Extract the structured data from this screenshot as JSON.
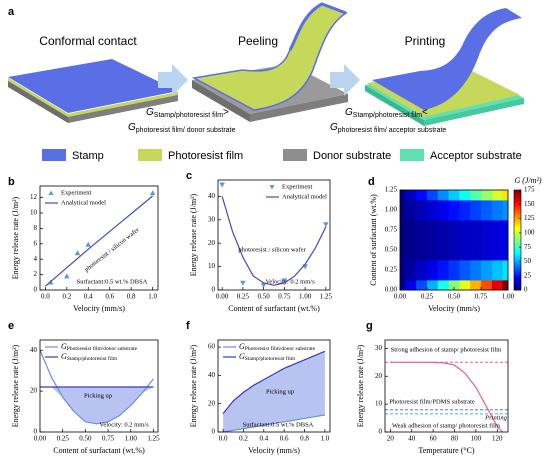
{
  "panel_a": {
    "label": "a",
    "steps": [
      "Conformal contact",
      "Peeling",
      "Printing"
    ],
    "conditions": [
      {
        "top": {
          "symbol": "G",
          "sub": "Stamp/photoresist film",
          "relation": ">"
        },
        "bottom": {
          "symbol": "G",
          "sub": "photoresist film/ donor substrate"
        }
      },
      {
        "top": {
          "symbol": "G",
          "sub": "Stamp/photoresist film",
          "relation": "<"
        },
        "bottom": {
          "symbol": "G",
          "sub": "photoresist film/ acceptor substrate"
        }
      }
    ],
    "legend": [
      {
        "name": "Stamp",
        "color": "#5a6ee6"
      },
      {
        "name": "Photoresist film",
        "color": "#c5d85a"
      },
      {
        "name": "Donor substrate",
        "color": "#8e8e8e"
      },
      {
        "name": "Acceptor substrate",
        "color": "#5ee0b0"
      }
    ]
  },
  "chart_data": [
    {
      "label": "b",
      "type": "scatter",
      "xlabel": "Velocity (mm/s)",
      "ylabel": "Energy release rate (J/m²)",
      "xlim": [
        -0.05,
        1.05
      ],
      "ylim": [
        0,
        13.5
      ],
      "xticks": [
        {
          "value": 0,
          "label": "0.0"
        },
        0.2,
        0.4,
        0.6,
        0.8,
        {
          "value": 1,
          "label": "1.0"
        }
      ],
      "yticks": [
        0,
        2,
        4,
        6,
        8,
        10,
        12
      ],
      "legend": "upper left",
      "series": [
        {
          "name": "Experiment",
          "color": "#5b9bd5",
          "marker": "triangle",
          "x": [
            0.05,
            0.2,
            0.3,
            0.4,
            1.0
          ],
          "values": [
            1.0,
            1.8,
            4.8,
            5.9,
            12.6
          ]
        },
        {
          "name": "Analytical model",
          "color": "#4848c0",
          "x": [
            0,
            0.2,
            0.4,
            0.6,
            0.8,
            1.0
          ],
          "values": [
            0.5,
            2.9,
            5.3,
            7.6,
            9.9,
            12.2
          ]
        }
      ],
      "annotations": [
        {
          "text": "photoresist / silicon wafer"
        },
        {
          "text": "Surfactant:0.5 wt.% DBSA"
        }
      ]
    },
    {
      "label": "c",
      "type": "scatter",
      "xlabel": "Content of surfactant (wt.%)",
      "ylabel": "Energy release rate (J/m²)",
      "xlim": [
        -0.05,
        1.3
      ],
      "ylim": [
        0,
        47
      ],
      "xticks": [
        {
          "value": 0,
          "label": "0.00"
        },
        0.25,
        {
          "value": 0.5,
          "label": "0.50"
        },
        0.75,
        {
          "value": 1,
          "label": "1.00"
        },
        1.25
      ],
      "yticks": [
        0,
        10,
        20,
        30,
        40
      ],
      "legend": "upper right",
      "series": [
        {
          "name": "Experiment",
          "color": "#5b9bd5",
          "marker": "triangle-down",
          "x": [
            0,
            0.25,
            0.5,
            0.75,
            1.0,
            1.25
          ],
          "values": [
            45,
            3,
            2,
            4,
            10,
            28
          ]
        },
        {
          "name": "Analytical model",
          "color": "#4848c0",
          "x": [
            0,
            0.125,
            0.25,
            0.375,
            0.5,
            0.625,
            0.75,
            0.875,
            1.0,
            1.125,
            1.25
          ],
          "values": [
            40,
            25,
            14,
            6,
            3,
            2,
            3,
            6,
            11,
            18,
            27
          ]
        }
      ],
      "annotations": [
        {
          "text": "photoresist / silicon wafer"
        },
        {
          "text": "Velocity: 0.2 mm/s"
        }
      ]
    },
    {
      "label": "d",
      "type": "heatmap",
      "xlabel": "Velocity (mm/s)",
      "ylabel": "Content of surfactant (wt.%)",
      "xlim": [
        0,
        1
      ],
      "ylim": [
        0,
        1.25
      ],
      "xticks": [
        {
          "value": 0,
          "label": "0.00"
        },
        0.25,
        {
          "value": 0.5,
          "label": "0.50"
        },
        0.75,
        {
          "value": 1,
          "label": "1.00"
        }
      ],
      "yticks": [
        {
          "value": 0,
          "label": "0.00"
        },
        0.25,
        {
          "value": 0.5,
          "label": "0.50"
        },
        0.75,
        {
          "value": 1,
          "label": "1.00"
        },
        1.25
      ],
      "x": [
        0,
        0.1,
        0.2,
        0.3,
        0.4,
        0.5,
        0.6,
        0.7,
        0.8,
        0.9,
        1.0
      ],
      "y": [
        0,
        0.25,
        0.5,
        0.75,
        1.0,
        1.25
      ],
      "z": [
        [
          0,
          18,
          35,
          53,
          70,
          88,
          105,
          123,
          140,
          158,
          175
        ],
        [
          0,
          6,
          12,
          18,
          25,
          31,
          37,
          43,
          49,
          55,
          61
        ],
        [
          0,
          2,
          4,
          5,
          7,
          9,
          11,
          12,
          14,
          16,
          18
        ],
        [
          0,
          2,
          4,
          5,
          7,
          9,
          11,
          12,
          14,
          16,
          18
        ],
        [
          0,
          5,
          9,
          14,
          19,
          24,
          28,
          33,
          38,
          43,
          47
        ],
        [
          0,
          11,
          23,
          34,
          46,
          57,
          68,
          80,
          91,
          102,
          114
        ]
      ],
      "zlim": [
        0,
        175
      ],
      "colormap": "jet",
      "colorbar_title": "G (J/m²)",
      "colorbar_ticks": [
        0,
        25,
        50,
        75,
        100,
        125,
        150,
        175
      ]
    },
    {
      "label": "e",
      "type": "line",
      "xlabel": "Content of surfactant (wt.%)",
      "ylabel": "Energy release rate (J/m²)",
      "xlim": [
        0,
        1.3
      ],
      "ylim": [
        0,
        45
      ],
      "xticks": [
        {
          "value": 0,
          "label": "0.00"
        },
        0.25,
        {
          "value": 0.5,
          "label": "0.50"
        },
        0.75,
        {
          "value": 1,
          "label": "1.00"
        },
        1.25
      ],
      "yticks": [
        0,
        20,
        40
      ],
      "legend": "upper left",
      "fill_between": true,
      "fill_color": "#b9c3f2",
      "x": [
        0,
        0.125,
        0.25,
        0.375,
        0.5,
        0.625,
        0.75,
        0.875,
        1.0,
        1.125,
        1.25
      ],
      "series": [
        {
          "name": {
            "symbol": "G",
            "sub": "Photoresist film/donor substrate"
          },
          "color": "#6a8ee0",
          "values": [
            40,
            27,
            17,
            10,
            5,
            4,
            5,
            8,
            13,
            19,
            26
          ]
        },
        {
          "name": {
            "symbol": "G",
            "sub": "Stamp/photoresist film"
          },
          "color": "#3a3ab8",
          "values": [
            22,
            22,
            22,
            22,
            22,
            22,
            22,
            22,
            22,
            22,
            22
          ]
        }
      ],
      "annotations": [
        {
          "text": "Picking up"
        },
        {
          "text": "Velocity: 0.2 mm/s"
        }
      ]
    },
    {
      "label": "f",
      "type": "line",
      "xlabel": "Velocity (mm/s)",
      "ylabel": "Energy release rate (J/m²)",
      "xlim": [
        -0.05,
        1.05
      ],
      "ylim": [
        0,
        65
      ],
      "xticks": [
        {
          "value": 0,
          "label": "0.0"
        },
        0.2,
        0.4,
        0.6,
        0.8,
        {
          "value": 1,
          "label": "1.0"
        }
      ],
      "yticks": [
        0,
        20,
        40,
        60
      ],
      "legend": "upper left",
      "fill_between": true,
      "fill_color": "#b9c3f2",
      "x": [
        0,
        0.1,
        0.2,
        0.3,
        0.4,
        0.5,
        0.6,
        0.7,
        0.8,
        0.9,
        1.0
      ],
      "series": [
        {
          "name": {
            "symbol": "G",
            "sub": "Photoresist film/donor substrate"
          },
          "color": "#6a8ee0",
          "values": [
            0,
            1.2,
            2.4,
            3.6,
            4.8,
            6,
            7.2,
            8.4,
            9.6,
            10.8,
            12
          ]
        },
        {
          "name": {
            "symbol": "G",
            "sub": "Stamp/photoresist film"
          },
          "color": "#3a3ab8",
          "values": [
            13,
            22,
            28,
            33,
            37,
            41,
            45,
            48,
            51,
            54,
            57
          ]
        }
      ],
      "annotations": [
        {
          "text": "Picking up"
        },
        {
          "text": "Surfactant:0.5 wt.% DBSA"
        }
      ]
    },
    {
      "label": "g",
      "type": "line",
      "xlabel": "Temperature (°C)",
      "ylabel": "Energy release rate (J/m²)",
      "xlim": [
        15,
        130
      ],
      "ylim": [
        0,
        33
      ],
      "xticks": [
        20,
        40,
        60,
        80,
        100,
        120
      ],
      "yticks": [
        0,
        10,
        20,
        30
      ],
      "x": [
        20,
        40,
        60,
        70,
        80,
        90,
        100,
        110,
        120,
        125
      ],
      "series": [
        {
          "color": "#e8609a",
          "values": [
            25,
            25,
            25,
            24.8,
            24,
            21,
            16,
            9,
            2,
            0
          ]
        }
      ],
      "reference_lines": [
        {
          "value": 25,
          "color": "#e8609a"
        },
        {
          "value": 8,
          "color": "#4a7fd8"
        },
        {
          "value": 6.5,
          "color": "#38c0c8"
        }
      ],
      "annotations": [
        {
          "text": "Strong adhesion of stamp/ photoresist film"
        },
        {
          "text": "Photoresist film/PDMS substrate"
        },
        {
          "text": "Weak adhesion of stamp/ photoresist film"
        },
        {
          "text": "Printing",
          "color": "#e8609a"
        }
      ]
    }
  ]
}
